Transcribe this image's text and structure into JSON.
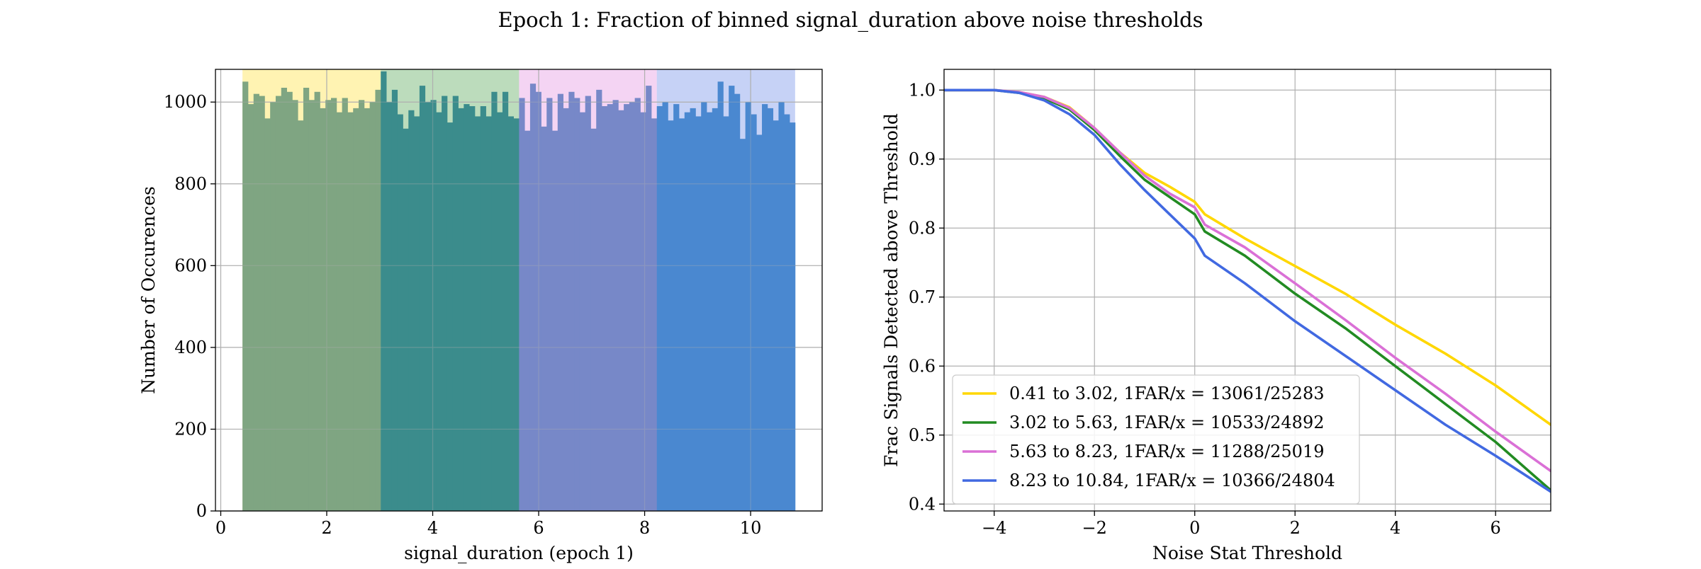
{
  "figure": {
    "title": "Epoch 1: Fraction of binned signal_duration above noise thresholds"
  },
  "chart_data": [
    {
      "type": "bar",
      "xlabel": "signal_duration (epoch 1)",
      "ylabel": "Number of Occurences",
      "xlim": [
        -0.1,
        11.35
      ],
      "ylim": [
        0,
        1080
      ],
      "xticks": [
        0,
        2,
        4,
        6,
        8,
        10
      ],
      "yticks": [
        0,
        200,
        400,
        600,
        800,
        1000
      ],
      "grid": true,
      "bin_start": 0.41,
      "bin_width": 0.1043,
      "bands": [
        {
          "range": [
            0.41,
            3.02
          ],
          "color": "#FFD700"
        },
        {
          "range": [
            3.02,
            5.63
          ],
          "color": "#228B22"
        },
        {
          "range": [
            5.63,
            8.23
          ],
          "color": "#DA70D6"
        },
        {
          "range": [
            8.23,
            10.84
          ],
          "color": "#4169E1"
        }
      ],
      "groups": [
        {
          "range": [
            0.41,
            3.02
          ],
          "bar_color": "#7FA582",
          "values": [
            1050,
            995,
            1020,
            1015,
            960,
            1000,
            1015,
            1035,
            1025,
            1005,
            955,
            1035,
            1005,
            1025,
            985,
            1005,
            1010,
            975,
            1010,
            975,
            985,
            1005,
            985,
            1000,
            1030
          ]
        },
        {
          "range": [
            3.02,
            5.63
          ],
          "bar_color": "#3B8C8C",
          "values": [
            1075,
            1000,
            1030,
            970,
            935,
            980,
            965,
            1040,
            1000,
            1005,
            975,
            1015,
            950,
            1015,
            985,
            995,
            990,
            965,
            990,
            965,
            1025,
            975,
            1025,
            965,
            960
          ]
        },
        {
          "range": [
            5.63,
            8.23
          ],
          "bar_color": "#7788C8",
          "values": [
            1010,
            930,
            1045,
            1025,
            940,
            1010,
            930,
            1020,
            985,
            1025,
            1010,
            975,
            1015,
            935,
            1030,
            990,
            995,
            1005,
            980,
            995,
            1000,
            1010,
            975,
            1040,
            960
          ]
        },
        {
          "range": [
            8.23,
            10.84
          ],
          "bar_color": "#4A88D0",
          "values": [
            990,
            1000,
            955,
            995,
            960,
            975,
            985,
            965,
            1000,
            975,
            985,
            1050,
            965,
            1040,
            1020,
            910,
            1000,
            970,
            920,
            995,
            985,
            955,
            1000,
            970,
            950
          ]
        }
      ]
    },
    {
      "type": "line",
      "xlabel": "Noise Stat Threshold",
      "ylabel": "Frac Signals Detected above Threshold",
      "xlim": [
        -5,
        7.1
      ],
      "ylim": [
        0.39,
        1.03
      ],
      "xticks": [
        -4,
        -2,
        0,
        2,
        4,
        6
      ],
      "yticks": [
        0.4,
        0.5,
        0.6,
        0.7,
        0.8,
        0.9,
        1.0
      ],
      "grid": true,
      "legend": "lower-left",
      "x": [
        -5,
        -4,
        -3.5,
        -3,
        -2.5,
        -2,
        -1.5,
        -1,
        -0.5,
        0,
        0.2,
        1,
        2,
        3,
        4,
        5,
        6,
        7.1
      ],
      "series": [
        {
          "name": "0.41 to 3.02, 1FAR/x = 13061/25283",
          "color": "#FFD700",
          "values": [
            1.0,
            1.0,
            0.997,
            0.99,
            0.975,
            0.945,
            0.91,
            0.88,
            0.86,
            0.838,
            0.82,
            0.785,
            0.745,
            0.705,
            0.66,
            0.618,
            0.572,
            0.515
          ]
        },
        {
          "name": "3.02 to 5.63, 1FAR/x = 10533/24892",
          "color": "#228B22",
          "values": [
            1.0,
            1.0,
            0.996,
            0.988,
            0.972,
            0.942,
            0.905,
            0.87,
            0.845,
            0.82,
            0.795,
            0.76,
            0.705,
            0.655,
            0.6,
            0.545,
            0.49,
            0.42
          ]
        },
        {
          "name": "5.63 to 8.23, 1FAR/x = 11288/25019",
          "color": "#DA70D6",
          "values": [
            1.0,
            1.0,
            0.997,
            0.99,
            0.974,
            0.945,
            0.91,
            0.876,
            0.85,
            0.83,
            0.805,
            0.772,
            0.72,
            0.667,
            0.612,
            0.56,
            0.505,
            0.448
          ]
        },
        {
          "name": "8.23 to 10.84, 1FAR/x = 10366/24804",
          "color": "#4169E1",
          "values": [
            1.0,
            1.0,
            0.996,
            0.985,
            0.965,
            0.935,
            0.893,
            0.855,
            0.82,
            0.785,
            0.76,
            0.72,
            0.665,
            0.615,
            0.565,
            0.515,
            0.47,
            0.418
          ]
        }
      ]
    }
  ]
}
